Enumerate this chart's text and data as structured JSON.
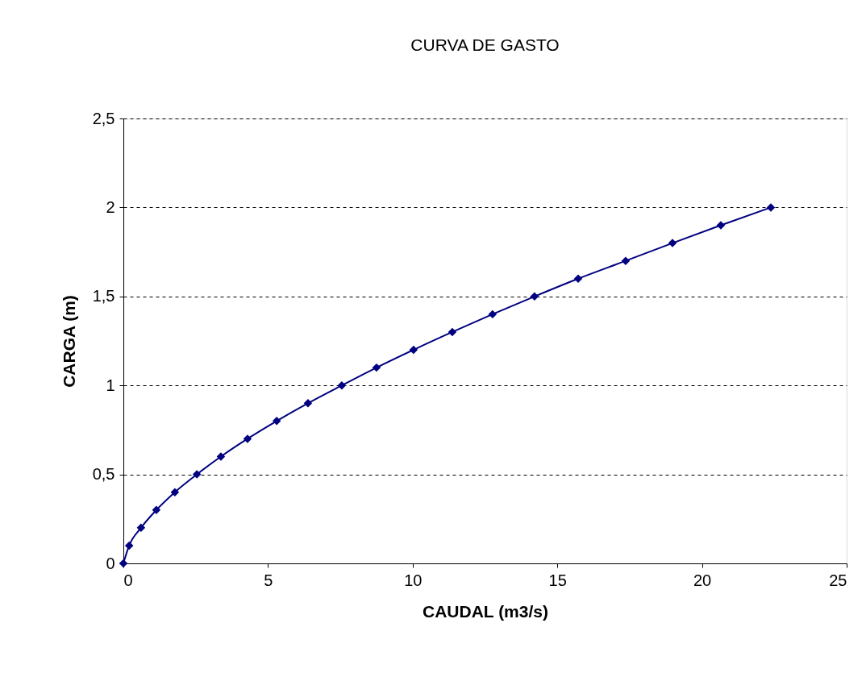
{
  "chart_data": {
    "type": "line",
    "title": "CURVA DE GASTO",
    "xlabel": "CAUDAL (m3/s)",
    "ylabel": "CARGA (m)",
    "x": [
      0,
      0.2,
      0.61,
      1.14,
      1.78,
      2.54,
      3.37,
      4.29,
      5.3,
      6.38,
      7.55,
      8.75,
      10.03,
      11.37,
      12.76,
      14.21,
      15.72,
      17.36,
      18.98,
      20.65,
      22.38
    ],
    "series": [
      {
        "color": "#000080",
        "values": [
          0,
          0.1,
          0.2,
          0.3,
          0.4,
          0.5,
          0.6,
          0.7,
          0.8,
          0.9,
          1.0,
          1.1,
          1.2,
          1.3,
          1.4,
          1.5,
          1.6,
          1.7,
          1.8,
          1.9,
          2.0
        ]
      }
    ],
    "xlim": [
      0,
      25
    ],
    "xticks": [
      0,
      5,
      10,
      15,
      20,
      25
    ],
    "ylim": [
      0,
      2.5
    ],
    "yticks": [
      0,
      {
        "value": 0.5,
        "label": "0,5"
      },
      1,
      {
        "value": 1.5,
        "label": "1,5"
      },
      2,
      {
        "value": 2.5,
        "label": "2,5"
      }
    ],
    "grid": "y",
    "marker": "diamond",
    "line_style": "solid"
  }
}
